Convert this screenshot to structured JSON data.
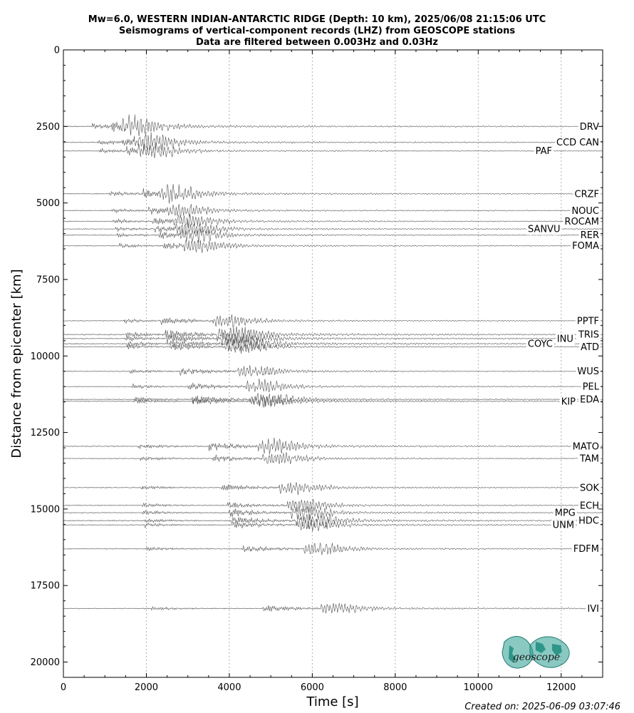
{
  "chart_data": {
    "type": "line",
    "title": [
      "Mw=6.0, WESTERN INDIAN-ANTARCTIC RIDGE (Depth: 10 km), 2025/06/08 21:15:06 UTC",
      "Seismograms of vertical-component records (LHZ) from GEOSCOPE stations",
      "Data are filtered between 0.003Hz and 0.03Hz"
    ],
    "xlabel": "Time [s]",
    "ylabel": "Distance from epicenter [km]",
    "xlim": [
      0,
      13000
    ],
    "ylim": [
      20500,
      0
    ],
    "xticks": [
      0,
      2000,
      4000,
      6000,
      8000,
      10000,
      12000
    ],
    "yticks": [
      0,
      2500,
      5000,
      7500,
      10000,
      12500,
      15000,
      17500,
      20000
    ],
    "xgrid": true,
    "ygrid": false,
    "stations": [
      {
        "name": "DRV",
        "distance": 2500,
        "p": 680,
        "s": 1150,
        "r": 1400,
        "amp": 1.3
      },
      {
        "name": "CCD CAN",
        "distance": 3020,
        "p": 830,
        "s": 1400,
        "r": 1700,
        "amp": 1.2
      },
      {
        "name": "PAF",
        "distance": 3300,
        "p": 880,
        "s": 1500,
        "r": 1800,
        "amp": 1.0
      },
      {
        "name": "CRZF",
        "distance": 4700,
        "p": 1100,
        "s": 1900,
        "r": 2300,
        "amp": 1.2
      },
      {
        "name": "NOUC",
        "distance": 5250,
        "p": 1150,
        "s": 2050,
        "r": 2500,
        "amp": 1.0
      },
      {
        "name": "ROCAM",
        "distance": 5600,
        "p": 1200,
        "s": 2150,
        "r": 2650,
        "amp": 1.0
      },
      {
        "name": "SANVU",
        "distance": 5850,
        "p": 1250,
        "s": 2200,
        "r": 2700,
        "amp": 1.0
      },
      {
        "name": "RER",
        "distance": 6050,
        "p": 1300,
        "s": 2300,
        "r": 2800,
        "amp": 1.0
      },
      {
        "name": "FOMA",
        "distance": 6400,
        "p": 1350,
        "s": 2400,
        "r": 2900,
        "amp": 1.0
      },
      {
        "name": "PPTF",
        "distance": 8850,
        "p": 1450,
        "s": 2350,
        "r": 3600,
        "amp": 1.0
      },
      {
        "name": "TRIS",
        "distance": 9300,
        "p": 1500,
        "s": 2450,
        "r": 3700,
        "amp": 1.4
      },
      {
        "name": "INU",
        "distance": 9430,
        "p": 1500,
        "s": 2500,
        "r": 3800,
        "amp": 1.2
      },
      {
        "name": "COYC",
        "distance": 9600,
        "p": 1500,
        "s": 2550,
        "r": 3900,
        "amp": 1.3
      },
      {
        "name": "ATD",
        "distance": 9700,
        "p": 1550,
        "s": 2600,
        "r": 3900,
        "amp": 1.0
      },
      {
        "name": "WUS",
        "distance": 10500,
        "p": 1600,
        "s": 2800,
        "r": 4200,
        "amp": 1.0
      },
      {
        "name": "PEL",
        "distance": 11000,
        "p": 1650,
        "s": 3000,
        "r": 4400,
        "amp": 1.0
      },
      {
        "name": "EDA",
        "distance": 11420,
        "p": 1700,
        "s": 3100,
        "r": 4500,
        "amp": 1.2
      },
      {
        "name": "KIP",
        "distance": 11480,
        "p": 1700,
        "s": 3100,
        "r": 4500,
        "amp": 1.0
      },
      {
        "name": "MATO",
        "distance": 12950,
        "p": 1800,
        "s": 3500,
        "r": 4700,
        "amp": 1.2
      },
      {
        "name": "TAM",
        "distance": 13350,
        "p": 1850,
        "s": 3600,
        "r": 4800,
        "amp": 1.0
      },
      {
        "name": "SOK",
        "distance": 14300,
        "p": 1850,
        "s": 3800,
        "r": 5200,
        "amp": 1.0
      },
      {
        "name": "ECH",
        "distance": 14880,
        "p": 1900,
        "s": 3950,
        "r": 5400,
        "amp": 1.0
      },
      {
        "name": "MPG",
        "distance": 15120,
        "p": 1900,
        "s": 4000,
        "r": 5500,
        "amp": 1.1
      },
      {
        "name": "HDC",
        "distance": 15380,
        "p": 1950,
        "s": 4050,
        "r": 5600,
        "amp": 1.2
      },
      {
        "name": "UNM",
        "distance": 15520,
        "p": 1950,
        "s": 4100,
        "r": 5600,
        "amp": 1.0
      },
      {
        "name": "FDFM",
        "distance": 16300,
        "p": 2000,
        "s": 4300,
        "r": 5800,
        "amp": 1.0
      },
      {
        "name": "IVI",
        "distance": 18250,
        "p": 2100,
        "s": 4800,
        "r": 6200,
        "amp": 1.0
      }
    ]
  },
  "footer": {
    "created": "Created on: 2025-06-09 03:07:46"
  },
  "logo": {
    "text": "geoscope",
    "color": "#2a9d8f"
  },
  "colors": {
    "trace": "#555555",
    "grid": "#b0b0b0"
  }
}
